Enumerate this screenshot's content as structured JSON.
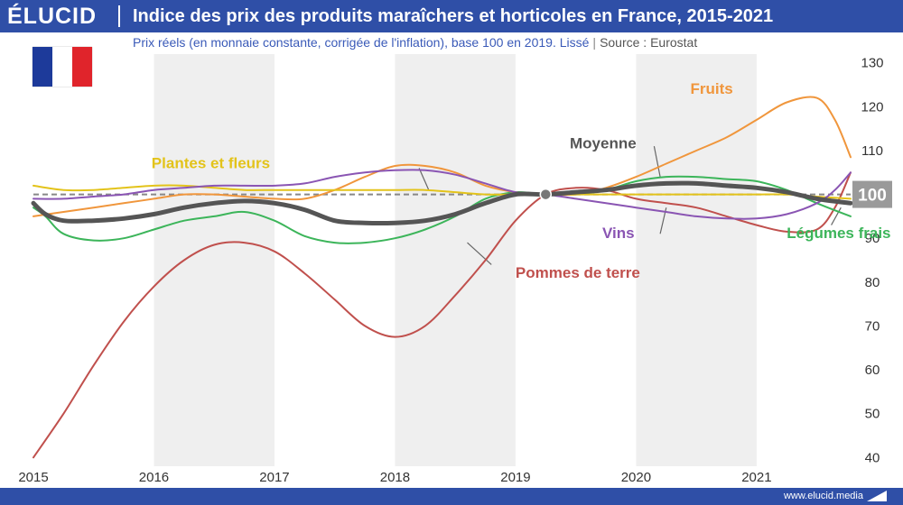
{
  "header": {
    "brand": "ÉLUCID",
    "title": "Indice des prix des produits maraîchers et horticoles en France, 2015-2021",
    "subtitle": "Prix réels (en monnaie constante, corrigée de l'inflation), base 100 en 2019. Lissé",
    "separator": "|",
    "source": "Source : Eurostat"
  },
  "footer": {
    "website": "www.elucid.media"
  },
  "colors": {
    "header_bg": "#2f4fa7",
    "flag_blue": "#1d3a9a",
    "flag_white": "#ffffff",
    "flag_red": "#e0242b",
    "band_shade": "#efefef"
  },
  "chart_data": {
    "type": "line",
    "title": "Indice des prix des produits maraîchers et horticoles en France, 2015-2021",
    "x_ticks": [
      2015,
      2016,
      2017,
      2018,
      2019,
      2020,
      2021
    ],
    "xlim": [
      2015,
      2021.78
    ],
    "y_ticks": [
      40,
      50,
      60,
      70,
      80,
      90,
      100,
      110,
      120,
      130
    ],
    "ylim": [
      38,
      132
    ],
    "reference": {
      "value": 100,
      "label": "100",
      "style": "dashed"
    },
    "anchor_point": {
      "x": 2019.25,
      "y": 100
    },
    "alternating_year_bands": true,
    "grid": false,
    "series": [
      {
        "name": "Pommes de terre",
        "color": "#c0504d",
        "width": 2,
        "label": {
          "text": "Pommes de terre",
          "at": [
            2019.0,
            81
          ],
          "leader": [
            [
              2018.8,
              84
            ],
            [
              2018.6,
              89
            ]
          ]
        },
        "points": [
          [
            2015,
            40
          ],
          [
            2015.25,
            50
          ],
          [
            2015.5,
            61
          ],
          [
            2015.75,
            71
          ],
          [
            2016,
            79
          ],
          [
            2016.25,
            85
          ],
          [
            2016.5,
            88.5
          ],
          [
            2016.75,
            89
          ],
          [
            2017,
            87
          ],
          [
            2017.25,
            82
          ],
          [
            2017.5,
            76
          ],
          [
            2017.75,
            70
          ],
          [
            2018,
            67.5
          ],
          [
            2018.25,
            70
          ],
          [
            2018.5,
            77
          ],
          [
            2018.75,
            85
          ],
          [
            2019,
            94
          ],
          [
            2019.25,
            100
          ],
          [
            2019.5,
            101.5
          ],
          [
            2019.75,
            101
          ],
          [
            2020,
            99
          ],
          [
            2020.25,
            98
          ],
          [
            2020.5,
            97
          ],
          [
            2020.75,
            95
          ],
          [
            2021,
            93
          ],
          [
            2021.25,
            91.5
          ],
          [
            2021.5,
            92
          ],
          [
            2021.65,
            97
          ],
          [
            2021.78,
            105
          ]
        ]
      },
      {
        "name": "Légumes frais",
        "color": "#3cb55a",
        "width": 2,
        "label": {
          "text": "Légumes frais",
          "at": [
            2021.25,
            90
          ],
          "leader": [
            [
              2021.62,
              93
            ],
            [
              2021.7,
              97
            ]
          ]
        },
        "points": [
          [
            2015,
            97
          ],
          [
            2015.1,
            95
          ],
          [
            2015.25,
            91
          ],
          [
            2015.5,
            89.5
          ],
          [
            2015.75,
            90
          ],
          [
            2016,
            92
          ],
          [
            2016.25,
            94
          ],
          [
            2016.5,
            95
          ],
          [
            2016.75,
            96
          ],
          [
            2017,
            94
          ],
          [
            2017.25,
            90.5
          ],
          [
            2017.5,
            89
          ],
          [
            2017.75,
            89
          ],
          [
            2018,
            90
          ],
          [
            2018.25,
            92
          ],
          [
            2018.5,
            95
          ],
          [
            2018.75,
            99
          ],
          [
            2019,
            100.5
          ],
          [
            2019.25,
            100
          ],
          [
            2019.5,
            100
          ],
          [
            2019.75,
            101
          ],
          [
            2020,
            103
          ],
          [
            2020.25,
            104
          ],
          [
            2020.5,
            104
          ],
          [
            2020.75,
            103.5
          ],
          [
            2021,
            103
          ],
          [
            2021.25,
            101
          ],
          [
            2021.5,
            98
          ],
          [
            2021.78,
            95
          ]
        ]
      },
      {
        "name": "Fruits",
        "color": "#f0963c",
        "width": 2,
        "label": {
          "text": "Fruits",
          "at": [
            2020.45,
            123
          ],
          "leader": []
        },
        "points": [
          [
            2015,
            95
          ],
          [
            2015.25,
            96
          ],
          [
            2015.5,
            97
          ],
          [
            2015.75,
            98
          ],
          [
            2016,
            99
          ],
          [
            2016.25,
            100
          ],
          [
            2016.5,
            100
          ],
          [
            2016.75,
            99.5
          ],
          [
            2017,
            99
          ],
          [
            2017.25,
            99
          ],
          [
            2017.5,
            101
          ],
          [
            2017.75,
            104
          ],
          [
            2018,
            106.5
          ],
          [
            2018.25,
            106.5
          ],
          [
            2018.5,
            105
          ],
          [
            2018.75,
            102
          ],
          [
            2019,
            100.5
          ],
          [
            2019.25,
            100
          ],
          [
            2019.5,
            100
          ],
          [
            2019.75,
            101.5
          ],
          [
            2020,
            104
          ],
          [
            2020.25,
            107
          ],
          [
            2020.5,
            110
          ],
          [
            2020.75,
            113
          ],
          [
            2021,
            117
          ],
          [
            2021.25,
            121
          ],
          [
            2021.5,
            122
          ],
          [
            2021.65,
            117
          ],
          [
            2021.78,
            108.5
          ]
        ]
      },
      {
        "name": "Plantes et fleurs",
        "color": "#e3c31a",
        "width": 2,
        "label": {
          "text": "Plantes et fleurs",
          "at": [
            2015.98,
            106
          ],
          "leader": [
            [
              2018.2,
              106
            ],
            [
              2018.28,
              101
            ]
          ]
        },
        "points": [
          [
            2015,
            102
          ],
          [
            2015.25,
            101
          ],
          [
            2015.5,
            101
          ],
          [
            2015.75,
            101.5
          ],
          [
            2016,
            102
          ],
          [
            2016.25,
            102
          ],
          [
            2016.5,
            101.5
          ],
          [
            2016.75,
            101
          ],
          [
            2017,
            101
          ],
          [
            2017.25,
            101
          ],
          [
            2017.5,
            101
          ],
          [
            2017.75,
            101
          ],
          [
            2018,
            101
          ],
          [
            2018.25,
            101
          ],
          [
            2018.5,
            100.5
          ],
          [
            2018.75,
            100
          ],
          [
            2019,
            100
          ],
          [
            2019.25,
            100
          ],
          [
            2019.5,
            100
          ],
          [
            2019.75,
            100
          ],
          [
            2020,
            100
          ],
          [
            2020.25,
            100
          ],
          [
            2020.5,
            100
          ],
          [
            2020.75,
            100
          ],
          [
            2021,
            100
          ],
          [
            2021.25,
            100
          ],
          [
            2021.5,
            99.5
          ],
          [
            2021.78,
            99
          ]
        ]
      },
      {
        "name": "Vins",
        "color": "#8a55b3",
        "width": 2,
        "label": {
          "text": "Vins",
          "at": [
            2019.72,
            90
          ],
          "leader": [
            [
              2020.2,
              91
            ],
            [
              2020.25,
              97
            ]
          ]
        },
        "points": [
          [
            2015,
            99
          ],
          [
            2015.25,
            99
          ],
          [
            2015.5,
            99.5
          ],
          [
            2015.75,
            100
          ],
          [
            2016,
            101
          ],
          [
            2016.25,
            101.5
          ],
          [
            2016.5,
            102
          ],
          [
            2016.75,
            102
          ],
          [
            2017,
            102
          ],
          [
            2017.25,
            102.5
          ],
          [
            2017.5,
            104
          ],
          [
            2017.75,
            105
          ],
          [
            2018,
            105.5
          ],
          [
            2018.25,
            105.5
          ],
          [
            2018.5,
            104.5
          ],
          [
            2018.75,
            102.5
          ],
          [
            2019,
            100.5
          ],
          [
            2019.25,
            100
          ],
          [
            2019.5,
            99
          ],
          [
            2019.75,
            98
          ],
          [
            2020,
            97
          ],
          [
            2020.25,
            96
          ],
          [
            2020.5,
            95
          ],
          [
            2020.75,
            94.5
          ],
          [
            2021,
            94.5
          ],
          [
            2021.25,
            95.5
          ],
          [
            2021.5,
            98
          ],
          [
            2021.65,
            101
          ],
          [
            2021.78,
            105
          ]
        ]
      },
      {
        "name": "Moyenne",
        "color": "#555555",
        "width": 5,
        "label": {
          "text": "Moyenne",
          "at": [
            2019.45,
            110.5
          ],
          "leader": [
            [
              2020.15,
              111
            ],
            [
              2020.2,
              104
            ]
          ]
        },
        "points": [
          [
            2015,
            98
          ],
          [
            2015.1,
            95.5
          ],
          [
            2015.25,
            94
          ],
          [
            2015.5,
            94
          ],
          [
            2015.75,
            94.5
          ],
          [
            2016,
            95.5
          ],
          [
            2016.25,
            97
          ],
          [
            2016.5,
            98
          ],
          [
            2016.75,
            98.5
          ],
          [
            2017,
            98
          ],
          [
            2017.25,
            96.5
          ],
          [
            2017.5,
            94
          ],
          [
            2017.75,
            93.5
          ],
          [
            2018,
            93.5
          ],
          [
            2018.25,
            94
          ],
          [
            2018.5,
            95.5
          ],
          [
            2018.75,
            98
          ],
          [
            2019,
            100
          ],
          [
            2019.25,
            100
          ],
          [
            2019.5,
            100.5
          ],
          [
            2019.75,
            101
          ],
          [
            2020,
            102
          ],
          [
            2020.25,
            102.5
          ],
          [
            2020.5,
            102.5
          ],
          [
            2020.75,
            102
          ],
          [
            2021,
            101.5
          ],
          [
            2021.25,
            100.5
          ],
          [
            2021.5,
            99
          ],
          [
            2021.78,
            98
          ]
        ]
      }
    ]
  }
}
